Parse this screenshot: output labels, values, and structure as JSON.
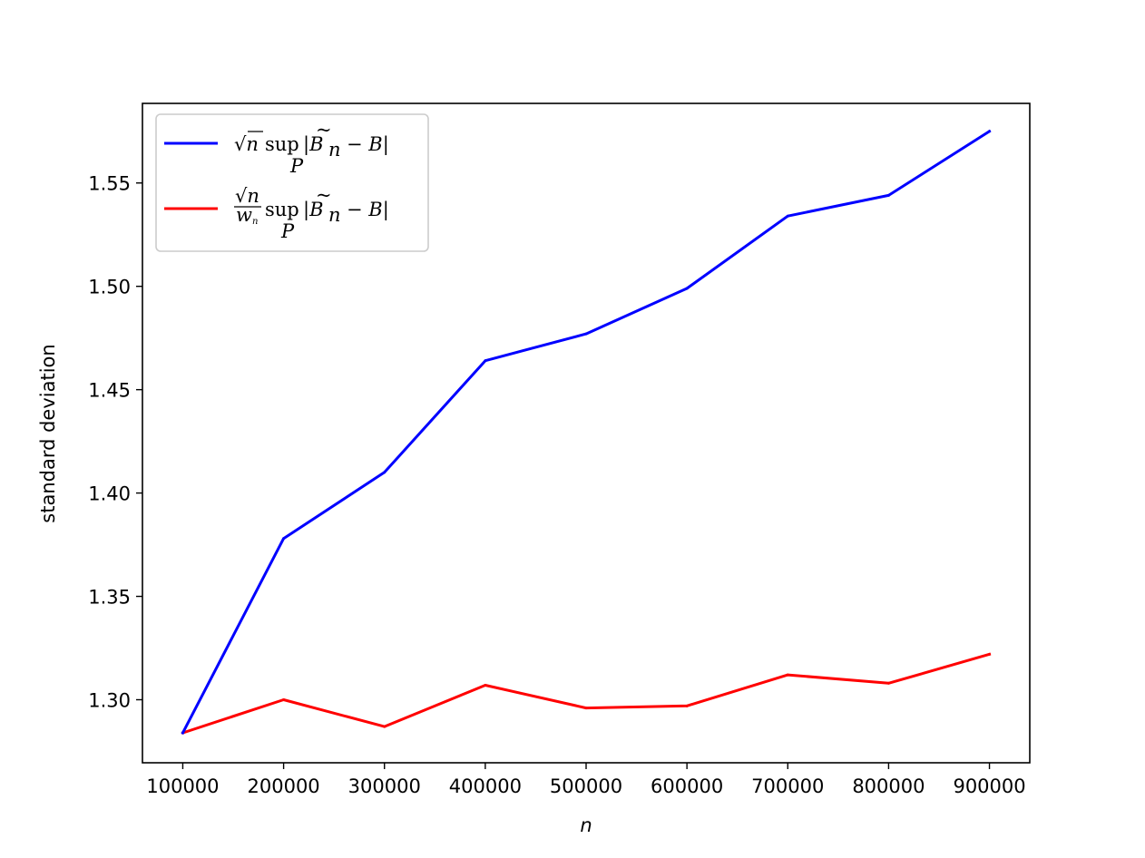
{
  "chart_data": {
    "type": "line",
    "xlabel": "n",
    "ylabel": "standard deviation",
    "x": [
      100000,
      200000,
      300000,
      400000,
      500000,
      600000,
      700000,
      800000,
      900000
    ],
    "x_tick_labels": [
      "100000",
      "200000",
      "300000",
      "400000",
      "500000",
      "600000",
      "700000",
      "800000",
      "900000"
    ],
    "y_ticks": [
      1.3,
      1.35,
      1.4,
      1.45,
      1.5,
      1.55
    ],
    "y_tick_labels": [
      "1.30",
      "1.35",
      "1.40",
      "1.45",
      "1.50",
      "1.55"
    ],
    "xlim": [
      60000,
      940000
    ],
    "ylim": [
      1.2695,
      1.5885
    ],
    "grid": false,
    "legend_position": "upper-left",
    "series": [
      {
        "name": "√n sup_P |B̃_n − B|",
        "color": "#0000ff",
        "values": [
          1.284,
          1.378,
          1.41,
          1.464,
          1.477,
          1.499,
          1.534,
          1.544,
          1.575
        ]
      },
      {
        "name": "(√n / w_n) sup_P |B̃_n − B|",
        "color": "#ff0000",
        "values": [
          1.284,
          1.3,
          1.287,
          1.307,
          1.296,
          1.297,
          1.312,
          1.308,
          1.322
        ]
      }
    ]
  }
}
